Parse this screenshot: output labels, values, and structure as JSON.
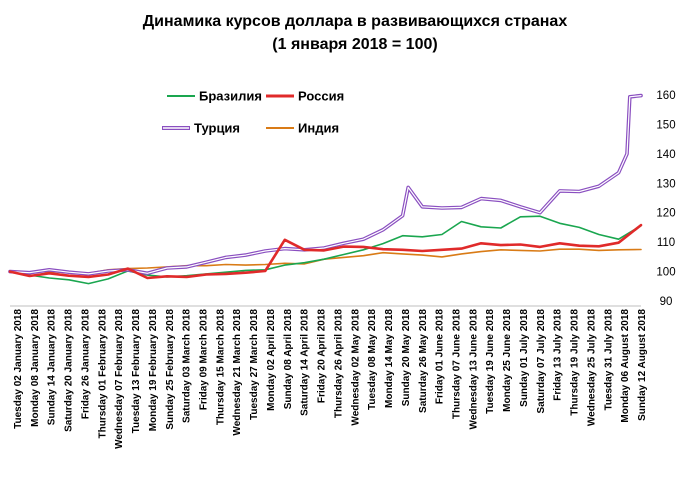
{
  "chart_data": {
    "type": "line",
    "title_line1": "Динамика курсов доллара в развивающихся странах",
    "title_line2": "(1 января 2018 = 100)",
    "xlabel": "",
    "ylabel": "",
    "ylim": [
      90,
      160
    ],
    "yticks": [
      90,
      100,
      110,
      120,
      130,
      140,
      150,
      160
    ],
    "y_axis_position": "right",
    "grid": false,
    "legend_placement": "top-left, inside plot",
    "x_start_date": "2018-01-01",
    "x_end_date": "2018-08-14",
    "x_tick_labels": [
      "Tuesday 02 January 2018",
      "Monday 08 January 2018",
      "Sunday 14 January 2018",
      "Saturday 20 January 2018",
      "Friday 26 January 2018",
      "Thursday 01 February 2018",
      "Wednesday 07 February 2018",
      "Tuesday 13 February 2018",
      "Monday 19 February 2018",
      "Sunday 25 February 2018",
      "Saturday 03 March 2018",
      "Friday 09 March 2018",
      "Thursday 15 March 2018",
      "Wednesday 21 March 2018",
      "Tuesday 27 March 2018",
      "Monday 02 April 2018",
      "Sunday 08 April 2018",
      "Saturday 14 April 2018",
      "Friday 20 April 2018",
      "Thursday 26 April 2018",
      "Wednesday 02 May 2018",
      "Tuesday 08 May 2018",
      "Monday 14 May 2018",
      "Sunday 20 May 2018",
      "Saturday 26 May 2018",
      "Friday 01 June 2018",
      "Thursday 07 June 2018",
      "Wednesday 13 June 2018",
      "Tuesday 19 June 2018",
      "Monday 25 June 2018",
      "Sunday 01 July 2018",
      "Saturday 07 July 2018",
      "Friday 13 July 2018",
      "Thursday 19 July 2018",
      "Wednesday 25 July 2018",
      "Tuesday 31 July 2018",
      "Monday 06 August 2018",
      "Sunday 12 August 2018"
    ],
    "series": [
      {
        "name": "Бразилия",
        "color": "#1aa64f",
        "points": [
          [
            "2018-01-01",
            100
          ],
          [
            "2018-01-08",
            98.8
          ],
          [
            "2018-01-15",
            97.8
          ],
          [
            "2018-01-22",
            97.2
          ],
          [
            "2018-01-29",
            95.9
          ],
          [
            "2018-02-05",
            97.5
          ],
          [
            "2018-02-12",
            100.2
          ],
          [
            "2018-02-19",
            98.8
          ],
          [
            "2018-02-26",
            98.2
          ],
          [
            "2018-03-05",
            98.6
          ],
          [
            "2018-03-12",
            99.2
          ],
          [
            "2018-03-19",
            99.8
          ],
          [
            "2018-03-26",
            100.4
          ],
          [
            "2018-04-02",
            100.6
          ],
          [
            "2018-04-09",
            102.2
          ],
          [
            "2018-04-16",
            103.0
          ],
          [
            "2018-04-23",
            104.2
          ],
          [
            "2018-04-30",
            105.8
          ],
          [
            "2018-05-07",
            107.4
          ],
          [
            "2018-05-14",
            109.5
          ],
          [
            "2018-05-21",
            112.2
          ],
          [
            "2018-05-28",
            111.8
          ],
          [
            "2018-06-04",
            112.6
          ],
          [
            "2018-06-11",
            117.0
          ],
          [
            "2018-06-18",
            115.2
          ],
          [
            "2018-06-25",
            114.8
          ],
          [
            "2018-07-02",
            118.6
          ],
          [
            "2018-07-09",
            118.8
          ],
          [
            "2018-07-16",
            116.4
          ],
          [
            "2018-07-23",
            115.0
          ],
          [
            "2018-07-30",
            112.6
          ],
          [
            "2018-08-06",
            111.0
          ],
          [
            "2018-08-14",
            115.6
          ]
        ]
      },
      {
        "name": "Россия",
        "color": "#e02a2a",
        "points": [
          [
            "2018-01-01",
            100
          ],
          [
            "2018-01-08",
            98.5
          ],
          [
            "2018-01-15",
            99.4
          ],
          [
            "2018-01-22",
            98.6
          ],
          [
            "2018-01-29",
            98.2
          ],
          [
            "2018-02-05",
            99.0
          ],
          [
            "2018-02-12",
            101.0
          ],
          [
            "2018-02-19",
            97.8
          ],
          [
            "2018-02-26",
            98.4
          ],
          [
            "2018-03-05",
            98.2
          ],
          [
            "2018-03-12",
            99.0
          ],
          [
            "2018-03-19",
            99.2
          ],
          [
            "2018-03-26",
            99.6
          ],
          [
            "2018-04-02",
            100.2
          ],
          [
            "2018-04-09",
            110.8
          ],
          [
            "2018-04-16",
            107.4
          ],
          [
            "2018-04-23",
            107.2
          ],
          [
            "2018-04-30",
            108.5
          ],
          [
            "2018-05-07",
            108.4
          ],
          [
            "2018-05-14",
            107.6
          ],
          [
            "2018-05-21",
            107.4
          ],
          [
            "2018-05-28",
            107.0
          ],
          [
            "2018-06-04",
            107.4
          ],
          [
            "2018-06-11",
            107.8
          ],
          [
            "2018-06-18",
            109.6
          ],
          [
            "2018-06-25",
            109.0
          ],
          [
            "2018-07-02",
            109.2
          ],
          [
            "2018-07-09",
            108.4
          ],
          [
            "2018-07-16",
            109.6
          ],
          [
            "2018-07-23",
            108.8
          ],
          [
            "2018-07-30",
            108.6
          ],
          [
            "2018-08-06",
            109.8
          ],
          [
            "2018-08-14",
            115.8
          ]
        ]
      },
      {
        "name": "Турция",
        "color": "#8a4fc0",
        "points": [
          [
            "2018-01-01",
            100
          ],
          [
            "2018-01-08",
            99.6
          ],
          [
            "2018-01-15",
            100.6
          ],
          [
            "2018-01-22",
            99.8
          ],
          [
            "2018-01-29",
            99.2
          ],
          [
            "2018-02-05",
            100.2
          ],
          [
            "2018-02-12",
            100.6
          ],
          [
            "2018-02-19",
            99.4
          ],
          [
            "2018-02-26",
            101.2
          ],
          [
            "2018-03-05",
            101.6
          ],
          [
            "2018-03-12",
            103.2
          ],
          [
            "2018-03-19",
            104.8
          ],
          [
            "2018-03-26",
            105.6
          ],
          [
            "2018-04-02",
            107.0
          ],
          [
            "2018-04-09",
            107.8
          ],
          [
            "2018-04-16",
            107.4
          ],
          [
            "2018-04-23",
            108.0
          ],
          [
            "2018-04-30",
            109.6
          ],
          [
            "2018-05-07",
            111.0
          ],
          [
            "2018-05-14",
            114.2
          ],
          [
            "2018-05-21",
            119.0
          ],
          [
            "2018-05-23",
            128.6
          ],
          [
            "2018-05-28",
            122.0
          ],
          [
            "2018-06-04",
            121.6
          ],
          [
            "2018-06-11",
            121.8
          ],
          [
            "2018-06-18",
            124.8
          ],
          [
            "2018-06-25",
            124.2
          ],
          [
            "2018-07-02",
            122.0
          ],
          [
            "2018-07-09",
            120.0
          ],
          [
            "2018-07-16",
            127.4
          ],
          [
            "2018-07-23",
            127.2
          ],
          [
            "2018-07-30",
            129.0
          ],
          [
            "2018-08-06",
            133.6
          ],
          [
            "2018-08-09",
            140.0
          ],
          [
            "2018-08-10",
            159.4
          ],
          [
            "2018-08-14",
            159.8
          ]
        ]
      },
      {
        "name": "Индия",
        "color": "#d97b16",
        "points": [
          [
            "2018-01-01",
            100
          ],
          [
            "2018-01-08",
            99.8
          ],
          [
            "2018-01-15",
            100.0
          ],
          [
            "2018-01-22",
            99.6
          ],
          [
            "2018-01-29",
            99.4
          ],
          [
            "2018-02-05",
            100.6
          ],
          [
            "2018-02-12",
            101.0
          ],
          [
            "2018-02-19",
            101.2
          ],
          [
            "2018-02-26",
            101.6
          ],
          [
            "2018-03-05",
            102.0
          ],
          [
            "2018-03-12",
            102.0
          ],
          [
            "2018-03-19",
            102.4
          ],
          [
            "2018-03-26",
            102.2
          ],
          [
            "2018-04-02",
            102.4
          ],
          [
            "2018-04-09",
            102.8
          ],
          [
            "2018-04-16",
            102.6
          ],
          [
            "2018-04-23",
            104.2
          ],
          [
            "2018-04-30",
            104.8
          ],
          [
            "2018-05-07",
            105.4
          ],
          [
            "2018-05-14",
            106.4
          ],
          [
            "2018-05-21",
            106.0
          ],
          [
            "2018-05-28",
            105.6
          ],
          [
            "2018-06-04",
            105.0
          ],
          [
            "2018-06-11",
            106.0
          ],
          [
            "2018-06-18",
            106.8
          ],
          [
            "2018-06-25",
            107.4
          ],
          [
            "2018-07-02",
            107.2
          ],
          [
            "2018-07-09",
            107.0
          ],
          [
            "2018-07-16",
            107.6
          ],
          [
            "2018-07-23",
            107.6
          ],
          [
            "2018-07-30",
            107.2
          ],
          [
            "2018-08-06",
            107.4
          ],
          [
            "2018-08-14",
            107.5
          ]
        ]
      }
    ]
  }
}
